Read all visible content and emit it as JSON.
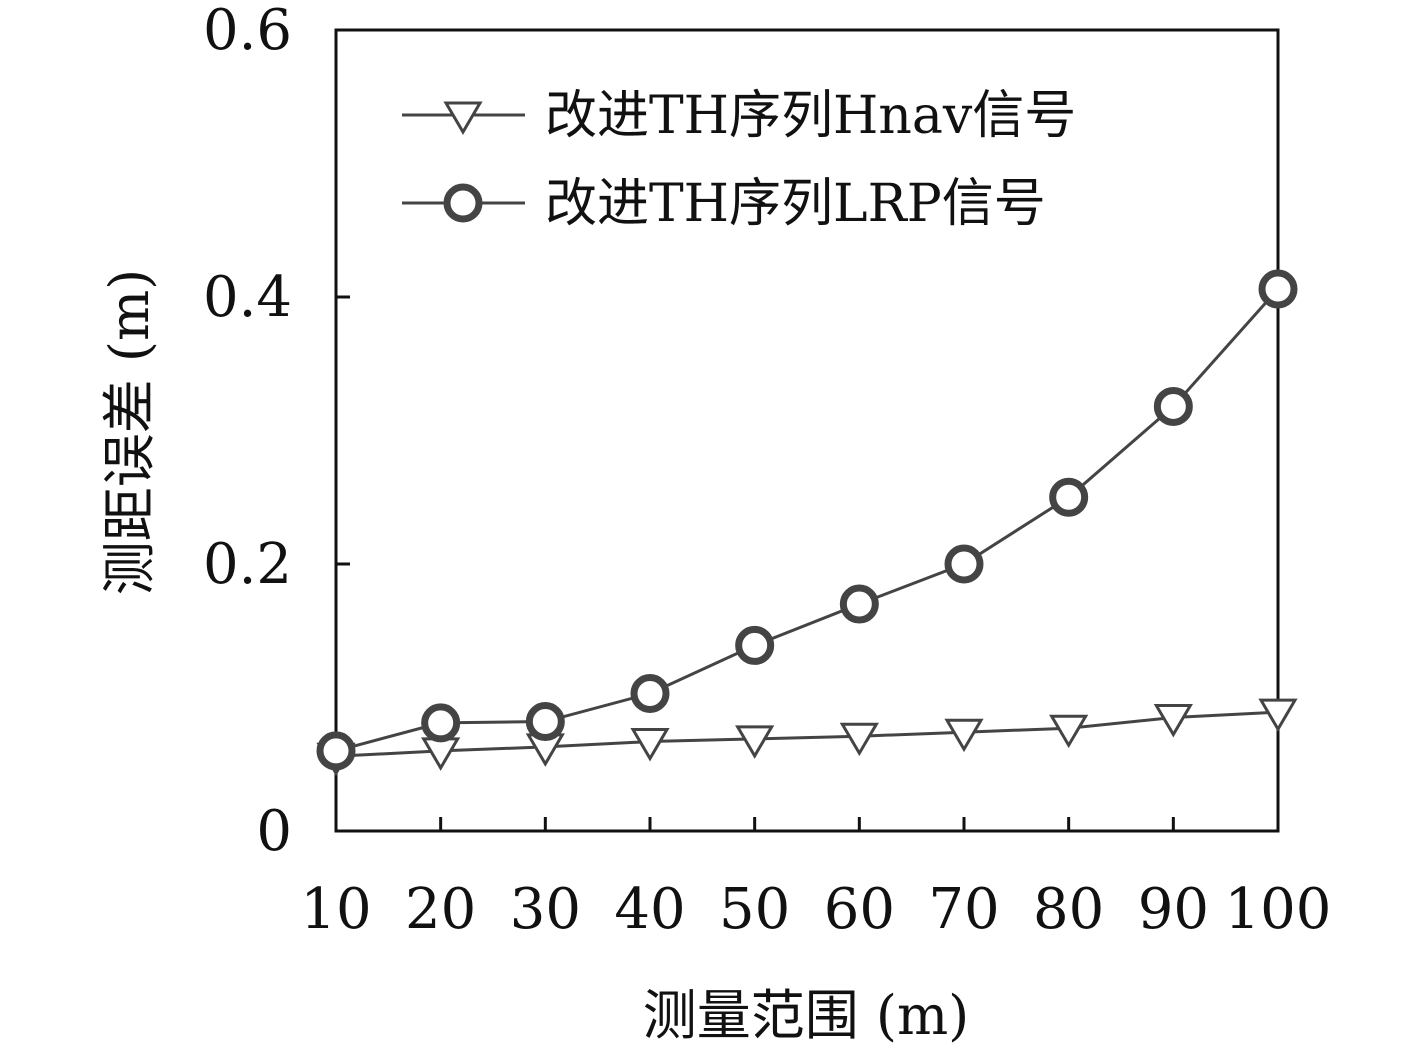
{
  "chart_data": {
    "type": "line",
    "title": "",
    "xlabel": "测量范围 (m)",
    "ylabel": "测距误差 (m)",
    "x": [
      10,
      20,
      30,
      40,
      50,
      60,
      70,
      80,
      90,
      100
    ],
    "xticks": [
      "10",
      "20",
      "30",
      "40",
      "50",
      "60",
      "70",
      "80",
      "90",
      "100"
    ],
    "ylim": [
      0,
      0.6
    ],
    "yticks": [
      "0",
      "0.2",
      "0.4",
      "0.6"
    ],
    "yticks_values": [
      0,
      0.2,
      0.4,
      0.6
    ],
    "grid": false,
    "legend_position": "top-left",
    "series": [
      {
        "name": "改进TH序列Hnav信号",
        "marker": "triangle-down",
        "color": "#444444",
        "values": [
          0.056,
          0.06,
          0.063,
          0.067,
          0.069,
          0.071,
          0.074,
          0.077,
          0.085,
          0.089
        ]
      },
      {
        "name": "改进TH序列LRP信号",
        "marker": "circle",
        "color": "#444444",
        "values": [
          0.06,
          0.081,
          0.082,
          0.103,
          0.139,
          0.17,
          0.2,
          0.25,
          0.318,
          0.406
        ]
      }
    ]
  }
}
